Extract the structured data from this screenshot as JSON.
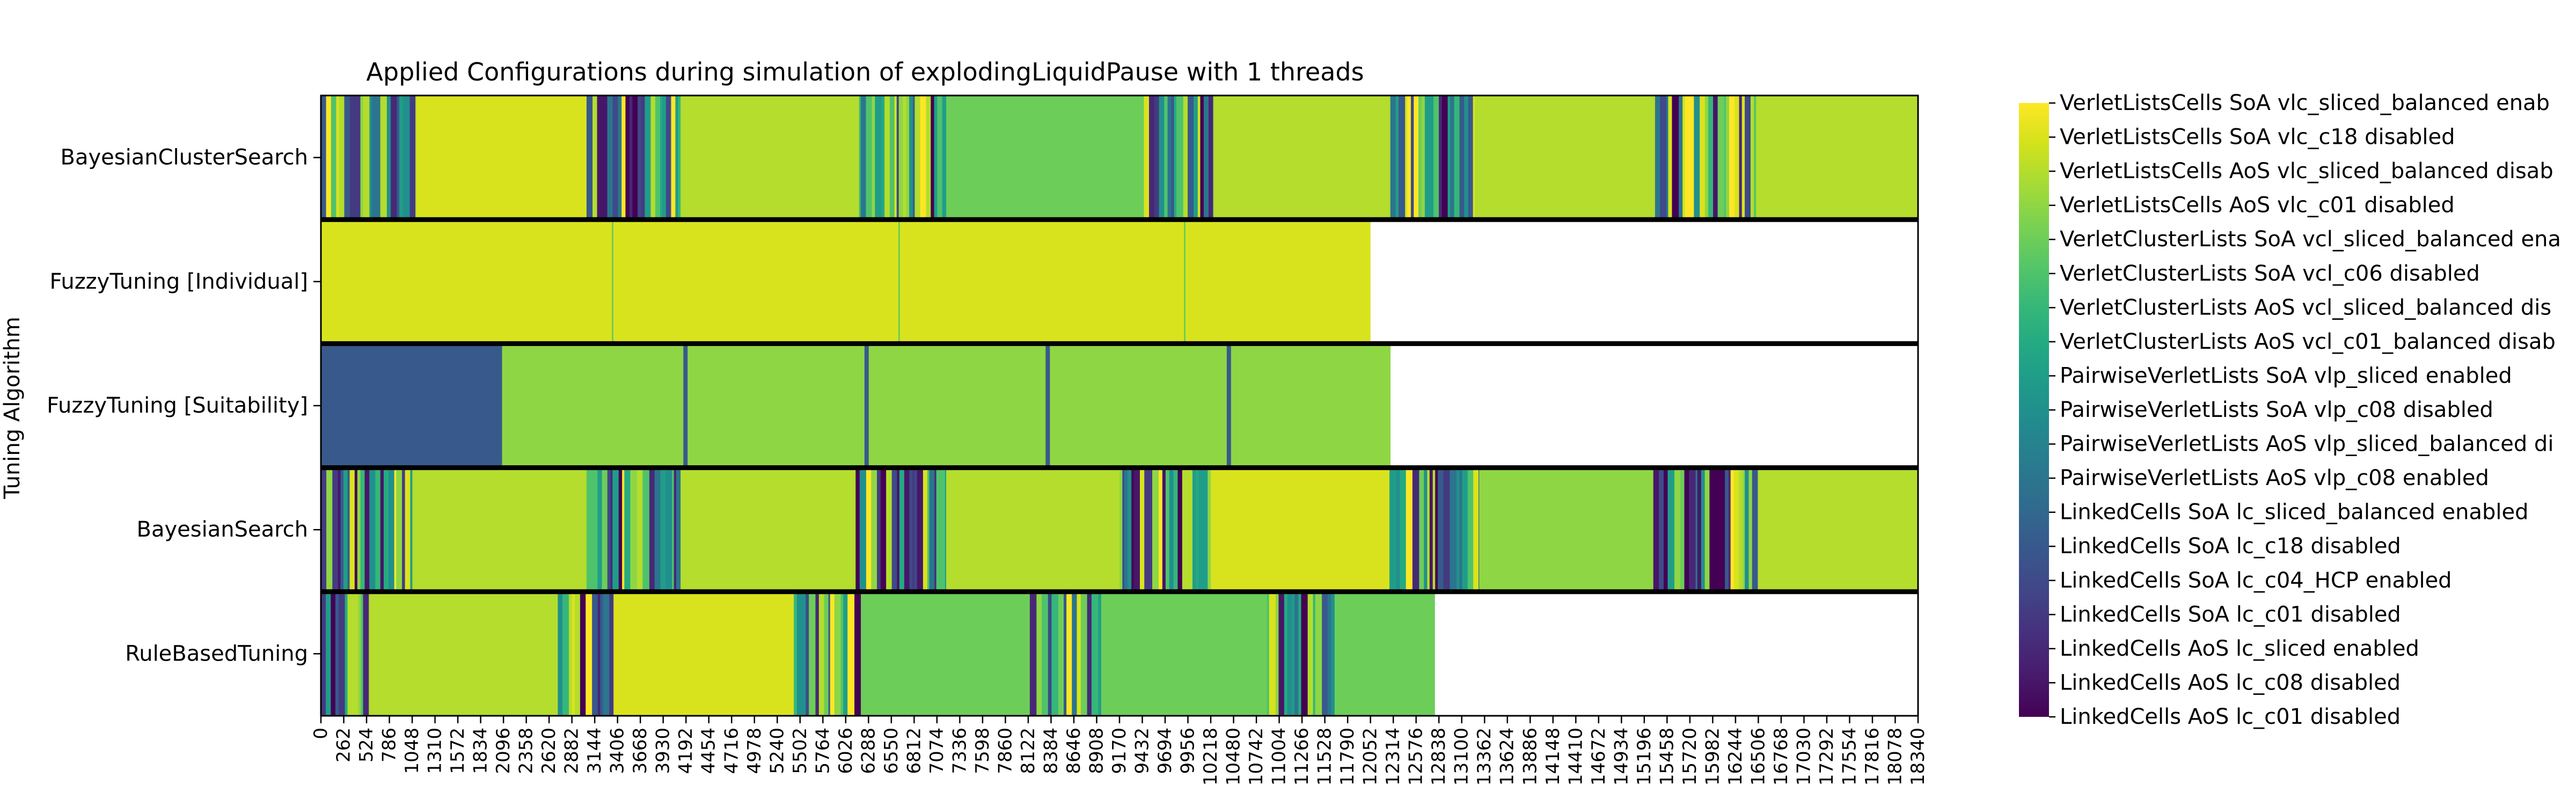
{
  "chart_data": {
    "type": "heatmap",
    "title": "Applied Configurations during simulation of explodingLiquidPause with 1 threads",
    "ylabel": "Tuning Algorithm",
    "xlabel": "",
    "colormap": "viridis",
    "x_ticks": [
      0,
      262,
      524,
      786,
      1048,
      1310,
      1572,
      1834,
      2096,
      2358,
      2620,
      2882,
      3144,
      3406,
      3668,
      3930,
      4192,
      4454,
      4716,
      4978,
      5240,
      5502,
      5764,
      6026,
      6288,
      6550,
      6812,
      7074,
      7336,
      7598,
      7860,
      8122,
      8384,
      8646,
      8908,
      9170,
      9432,
      9694,
      9956,
      10218,
      10480,
      10742,
      11004,
      11266,
      11528,
      11790,
      12052,
      12314,
      12576,
      12838,
      13100,
      13362,
      13624,
      13886,
      14148,
      14410,
      14672,
      14934,
      15196,
      15458,
      15720,
      15982,
      16244,
      16506,
      16768,
      17030,
      17292,
      17554,
      17816,
      18078,
      18340
    ],
    "x_range": [
      0,
      18340
    ],
    "configurations": [
      "LinkedCells AoS lc_c01 disabled",
      "LinkedCells AoS lc_c08 disabled",
      "LinkedCells AoS lc_sliced enabled",
      "LinkedCells SoA lc_c01 disabled",
      "LinkedCells SoA lc_c04_HCP enabled",
      "LinkedCells SoA lc_c18 disabled",
      "LinkedCells SoA lc_sliced_balanced enabled",
      "PairwiseVerletLists AoS vlp_c08 enabled",
      "PairwiseVerletLists AoS vlp_sliced_balanced di",
      "PairwiseVerletLists SoA vlp_c08 disabled",
      "PairwiseVerletLists SoA vlp_sliced enabled",
      "VerletClusterLists AoS vcl_c01_balanced disab",
      "VerletClusterLists AoS vcl_sliced_balanced dis",
      "VerletClusterLists SoA vcl_c06 disabled",
      "VerletClusterLists SoA vcl_sliced_balanced ena",
      "VerletListsCells AoS vlc_c01 disabled",
      "VerletListsCells AoS vlc_sliced_balanced disab",
      "VerletListsCells SoA vlc_c18 disabled",
      "VerletListsCells SoA vlc_sliced_balanced enab"
    ],
    "rows": [
      {
        "name": "BayesianClusterSearch",
        "segments": [
          [
            0,
            1100,
            "tuning"
          ],
          [
            1100,
            3050,
            17
          ],
          [
            3050,
            4130,
            "tuning"
          ],
          [
            4130,
            6180,
            16
          ],
          [
            6180,
            7180,
            "tuning"
          ],
          [
            7180,
            9450,
            14
          ],
          [
            9450,
            10250,
            "tuning"
          ],
          [
            10250,
            12280,
            16
          ],
          [
            12280,
            13250,
            "tuning"
          ],
          [
            13250,
            15320,
            16
          ],
          [
            15320,
            16480,
            "tuning"
          ],
          [
            16480,
            18340,
            16
          ]
        ]
      },
      {
        "name": "FuzzyTuning [Individual]",
        "segments": [
          [
            0,
            12050,
            17
          ]
        ]
      },
      {
        "name": "FuzzyTuning [Suitability]",
        "segments": [
          [
            0,
            2080,
            5
          ],
          [
            2080,
            12280,
            15
          ]
        ]
      },
      {
        "name": "BayesianSearch",
        "segments": [
          [
            0,
            1050,
            "tuning"
          ],
          [
            1050,
            3050,
            16
          ],
          [
            3050,
            4130,
            "tuning"
          ],
          [
            4130,
            6140,
            16
          ],
          [
            6140,
            7180,
            "tuning"
          ],
          [
            7180,
            9170,
            16
          ],
          [
            9170,
            10220,
            "tuning"
          ],
          [
            10220,
            12270,
            17
          ],
          [
            12270,
            13300,
            "tuning"
          ],
          [
            13300,
            15300,
            15
          ],
          [
            15300,
            16500,
            "tuning"
          ],
          [
            16500,
            18340,
            16
          ]
        ]
      },
      {
        "name": "RuleBasedTuning",
        "segments": [
          [
            0,
            550,
            "tuning"
          ],
          [
            550,
            2720,
            16
          ],
          [
            2720,
            3360,
            "tuning"
          ],
          [
            3360,
            5430,
            17
          ],
          [
            5430,
            6200,
            "tuning"
          ],
          [
            6200,
            8140,
            14
          ],
          [
            8140,
            8960,
            "tuning"
          ],
          [
            8960,
            10860,
            14
          ],
          [
            10860,
            11640,
            "tuning"
          ],
          [
            11640,
            12790,
            14
          ]
        ]
      }
    ],
    "colorbar_ticks_placement": "right",
    "grid": false
  }
}
